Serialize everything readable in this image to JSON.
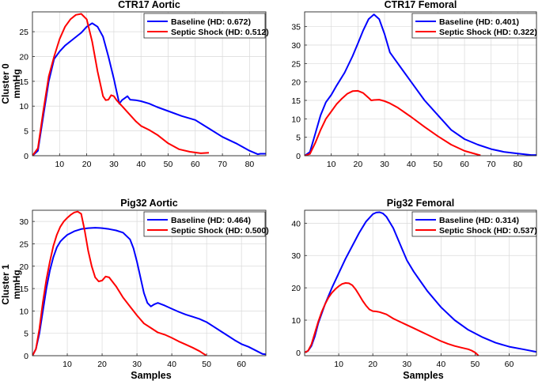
{
  "figure": {
    "row_labels": [
      "Cluster 0",
      "Cluster 1"
    ],
    "ylabel": "mmHg",
    "xlabel": "Samples"
  },
  "chart_data": [
    {
      "type": "line",
      "title": "CTR17 Aortic",
      "xlim": [
        0,
        86
      ],
      "ylim": [
        0,
        29
      ],
      "xticks": [
        10,
        20,
        30,
        40,
        50,
        60,
        70,
        80
      ],
      "yticks": [
        0,
        5,
        10,
        15,
        20,
        25
      ],
      "legend_position": "top-right",
      "grid": true,
      "series": [
        {
          "name": "Baseline (HD: 0.672)",
          "color": "#0000ff",
          "x": [
            0,
            2,
            4,
            6,
            8,
            10,
            12,
            15,
            18,
            20,
            22,
            24,
            26,
            28,
            30,
            31,
            32,
            33,
            35,
            36,
            38,
            40,
            43,
            46,
            50,
            55,
            60,
            65,
            70,
            75,
            80,
            83,
            84,
            86
          ],
          "y": [
            0,
            1,
            8,
            15,
            19.5,
            21,
            22.2,
            23.5,
            24.8,
            26,
            26.7,
            26,
            24,
            20,
            15.5,
            13,
            10.5,
            11.2,
            12,
            11.3,
            11.2,
            11,
            10.5,
            9.8,
            9,
            8,
            7.2,
            5.5,
            3.8,
            2.5,
            1,
            0.3,
            0.4,
            0.4
          ]
        },
        {
          "name": "Septic Shock (HD: 0.512)",
          "color": "#ff0000",
          "x": [
            0,
            2,
            4,
            6,
            8,
            10,
            12,
            14,
            16,
            18,
            20,
            22,
            24,
            26,
            27,
            28,
            29,
            30,
            31,
            33,
            35,
            38,
            40,
            43,
            46,
            50,
            54,
            58,
            62,
            65
          ],
          "y": [
            0,
            1.5,
            9,
            16,
            20,
            23.5,
            26,
            27.5,
            28.4,
            28.6,
            27.5,
            23,
            17,
            12,
            11.2,
            11.3,
            12.2,
            12,
            11.2,
            10,
            8.8,
            7,
            6,
            5.2,
            4.2,
            2.5,
            1.3,
            0.8,
            0.5,
            0.6
          ]
        }
      ]
    },
    {
      "type": "line",
      "title": "CTR17 Femoral",
      "xlim": [
        0,
        87
      ],
      "ylim": [
        0,
        39
      ],
      "xticks": [
        10,
        20,
        30,
        40,
        50,
        60,
        70,
        80
      ],
      "yticks": [
        0,
        5,
        10,
        15,
        20,
        25,
        30,
        35
      ],
      "legend_position": "top-right",
      "grid": true,
      "series": [
        {
          "name": "Baseline (HD: 0.401)",
          "color": "#0000ff",
          "x": [
            0,
            2,
            4,
            6,
            8,
            10,
            12,
            15,
            18,
            20,
            22,
            24,
            26,
            28,
            30,
            32,
            34,
            36,
            40,
            45,
            50,
            55,
            60,
            65,
            70,
            75,
            80,
            85,
            87
          ],
          "y": [
            0,
            1,
            6,
            11,
            14.5,
            16.5,
            19,
            22.5,
            27,
            30.5,
            34,
            37,
            38.3,
            37,
            33,
            28,
            26,
            24,
            20,
            15,
            11,
            7,
            4.5,
            3,
            1.8,
            1,
            0.6,
            0.2,
            0.2
          ]
        },
        {
          "name": "Septic Shock (HD: 0.322)",
          "color": "#ff0000",
          "x": [
            0,
            2,
            4,
            6,
            8,
            10,
            12,
            14,
            16,
            18,
            20,
            22,
            24,
            25,
            26,
            28,
            30,
            32,
            35,
            40,
            45,
            50,
            55,
            60,
            65,
            66
          ],
          "y": [
            0,
            0.5,
            3.5,
            7,
            10,
            12,
            14,
            15.5,
            16.8,
            17.5,
            17.6,
            17,
            15.7,
            15,
            15.1,
            15.2,
            14.8,
            14.2,
            13,
            10.5,
            7.8,
            5.3,
            3,
            1.3,
            0.3,
            0.1
          ]
        }
      ]
    },
    {
      "type": "line",
      "title": "Pig32 Aortic",
      "xlim": [
        0,
        67
      ],
      "ylim": [
        0,
        32.5
      ],
      "xticks": [
        10,
        20,
        30,
        40,
        50,
        60
      ],
      "yticks": [
        0,
        5,
        10,
        15,
        20,
        25,
        30
      ],
      "legend_position": "top-right",
      "grid": true,
      "series": [
        {
          "name": "Baseline (HD: 0.464)",
          "color": "#0000ff",
          "x": [
            0,
            1,
            2,
            3,
            4,
            5,
            6,
            7,
            8,
            9,
            10,
            12,
            14,
            16,
            18,
            20,
            22,
            24,
            26,
            28,
            29,
            30,
            31,
            32,
            33,
            34,
            35,
            36,
            38,
            40,
            42,
            44,
            46,
            48,
            50,
            52,
            54,
            56,
            58,
            60,
            62,
            64,
            66,
            67
          ],
          "y": [
            0,
            1.5,
            5,
            10,
            15,
            19,
            22,
            24.2,
            25.5,
            26.3,
            27,
            27.8,
            28.3,
            28.5,
            28.6,
            28.5,
            28.3,
            28,
            27.5,
            26,
            24,
            21,
            17.5,
            14,
            11.8,
            11,
            11.5,
            11.8,
            11.2,
            10.5,
            9.8,
            9.2,
            8.7,
            8.2,
            7.5,
            6.5,
            5.5,
            4.5,
            3.5,
            2.6,
            2,
            1.2,
            0.4,
            0.3
          ]
        },
        {
          "name": "Septic Shock (HD: 0.500)",
          "color": "#ff0000",
          "x": [
            0,
            1,
            2,
            3,
            4,
            5,
            6,
            7,
            8,
            9,
            10,
            11,
            12,
            13,
            14,
            15,
            16,
            17,
            18,
            19,
            20,
            21,
            22,
            24,
            26,
            28,
            30,
            32,
            34,
            36,
            38,
            40,
            42,
            44,
            46,
            48,
            49,
            50
          ],
          "y": [
            0,
            1.5,
            6,
            12,
            17,
            21,
            24.5,
            27,
            28.8,
            30,
            30.8,
            31.5,
            32,
            32.2,
            31.7,
            28,
            23.5,
            20,
            17.5,
            16.6,
            16.8,
            17.7,
            17.5,
            15.5,
            13,
            11,
            9,
            7.2,
            6.2,
            5.2,
            4.7,
            4,
            3.2,
            2.5,
            1.8,
            1,
            0.5,
            0
          ]
        }
      ]
    },
    {
      "type": "line",
      "title": "Pig32 Femoral",
      "xlim": [
        0,
        68
      ],
      "ylim": [
        -1,
        44
      ],
      "xticks": [
        10,
        20,
        30,
        40,
        50,
        60
      ],
      "yticks": [
        0,
        10,
        20,
        30,
        40
      ],
      "legend_position": "top-right",
      "grid": true,
      "series": [
        {
          "name": "Baseline (HD: 0.314)",
          "color": "#0000ff",
          "x": [
            0,
            1,
            2,
            3,
            4,
            6,
            8,
            10,
            12,
            14,
            16,
            18,
            20,
            21,
            22,
            23,
            24,
            26,
            28,
            30,
            32,
            34,
            36,
            40,
            44,
            48,
            52,
            56,
            60,
            64,
            68
          ],
          "y": [
            0,
            0.5,
            2,
            5,
            9,
            15,
            20,
            24.5,
            29,
            33,
            37,
            40.5,
            42.8,
            43.3,
            43.4,
            43,
            42,
            38.5,
            33.5,
            28.5,
            25,
            22,
            19,
            14,
            10,
            7,
            4.8,
            3,
            1.8,
            1,
            0.2
          ]
        },
        {
          "name": "Septic Shock (HD: 0.537)",
          "color": "#ff0000",
          "x": [
            0,
            1,
            2,
            3,
            4,
            5,
            6,
            7,
            8,
            9,
            10,
            11,
            12,
            13,
            14,
            15,
            16,
            17,
            18,
            19,
            20,
            21,
            22,
            24,
            26,
            28,
            30,
            32,
            34,
            36,
            38,
            40,
            42,
            44,
            46,
            48,
            49,
            50,
            51
          ],
          "y": [
            0,
            0.5,
            2.5,
            6,
            9.5,
            12.5,
            15,
            17,
            18.5,
            19.6,
            20.5,
            21.2,
            21.5,
            21.4,
            20.8,
            19.5,
            17.8,
            16,
            14.5,
            13.3,
            12.8,
            12.7,
            12.5,
            11.8,
            10.5,
            9.5,
            8.5,
            7.5,
            6.5,
            5.5,
            4.5,
            3.5,
            2.7,
            2,
            1.5,
            1,
            0.6,
            0,
            -1
          ]
        }
      ]
    }
  ]
}
